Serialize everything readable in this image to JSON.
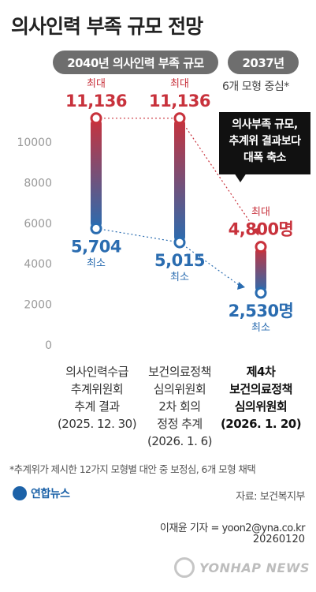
{
  "title": "의사인력 부족 규모 전망",
  "header": {
    "left_pill": "2040년 의사인력 부족 규모",
    "right_pill": "2037년",
    "note": "6개 모형 중심*"
  },
  "callout": {
    "lines": [
      "의사부족 규모,",
      "추계위 결과보다",
      "대폭 축소"
    ]
  },
  "chart_data": {
    "type": "range-bar",
    "y_ticks": [
      "10000",
      "8000",
      "6000",
      "4000",
      "2000",
      "0"
    ],
    "ylim": [
      0,
      11800
    ],
    "max_word": "최대",
    "min_word": "최소",
    "series": [
      {
        "max": 11136,
        "min": 5704,
        "max_label": "11,136",
        "min_label": "5,704",
        "label": [
          "의사인력수급",
          "추계위원회",
          "추계 결과",
          "(2025. 12. 30)"
        ],
        "bold": false
      },
      {
        "max": 11136,
        "min": 5015,
        "max_label": "11,136",
        "min_label": "5,015",
        "label": [
          "보건의료정책",
          "심의위원회",
          "2차 회의",
          "정정 추계",
          "(2026. 1. 6)"
        ],
        "bold": false
      },
      {
        "max": 4800,
        "min": 2530,
        "max_label": "4,800명",
        "min_label": "2,530명",
        "label": [
          "제4차",
          "보건의료정책",
          "심의위원회",
          "(2026. 1. 20)"
        ],
        "bold": true
      }
    ],
    "colors": {
      "max": "#c8323c",
      "min": "#2a6cb0"
    }
  },
  "footnote": "*추계위가 제시한 12가지 모형별 대안 중 보정심, 6개 모형 채택",
  "logo": "연합뉴스",
  "source": "자료: 보건복지부",
  "credit": "이재윤 기자 = yoon2@yna.co.kr",
  "date": "20260120",
  "watermark": "YONHAP NEWS"
}
